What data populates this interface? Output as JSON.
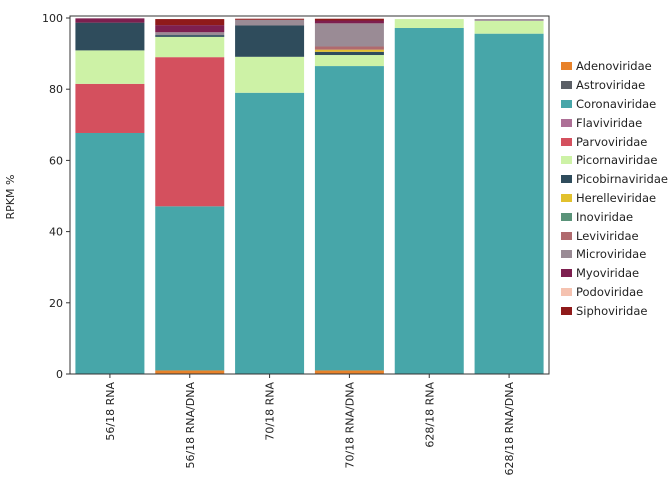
{
  "chart_data": {
    "type": "bar",
    "stacked": true,
    "title": "",
    "xlabel": "",
    "ylabel": "RPKM %",
    "ylim": [
      0,
      100
    ],
    "yticks": [
      0,
      20,
      40,
      60,
      80,
      100
    ],
    "legend_position": "right",
    "categories": [
      "56/18 RNA",
      "56/18 RNA/DNA",
      "70/18 RNA",
      "70/18 RNA/DNA",
      "628/18 RNA",
      "628/18 RNA/DNA"
    ],
    "series": [
      {
        "name": "Adenoviridae",
        "color": "#e8822a",
        "values": [
          0,
          1.0,
          0,
          1.0,
          0,
          0
        ]
      },
      {
        "name": "Astroviridae",
        "color": "#5b5f66",
        "values": [
          0,
          0,
          0,
          0,
          0,
          0
        ]
      },
      {
        "name": "Coronaviridae",
        "color": "#47a6a9",
        "values": [
          67.7,
          46.1,
          79.0,
          85.5,
          97.2,
          95.6
        ]
      },
      {
        "name": "Flaviviridae",
        "color": "#ad6f96",
        "values": [
          0,
          0,
          0,
          0,
          0,
          0
        ]
      },
      {
        "name": "Parvoviridae",
        "color": "#d4505e",
        "values": [
          13.8,
          41.9,
          0,
          0,
          0,
          0
        ]
      },
      {
        "name": "Picornaviridae",
        "color": "#cdf2a6",
        "values": [
          9.4,
          5.7,
          10.1,
          3.1,
          2.5,
          3.6
        ]
      },
      {
        "name": "Picobirnaviridae",
        "color": "#2f4c5c",
        "values": [
          7.8,
          0.5,
          8.8,
          0.9,
          0,
          0
        ]
      },
      {
        "name": "Herelleviridae",
        "color": "#e2c12d",
        "values": [
          0,
          0,
          0,
          0.6,
          0,
          0
        ]
      },
      {
        "name": "Inoviridae",
        "color": "#5a9379",
        "values": [
          0,
          0,
          0,
          0,
          0,
          0
        ]
      },
      {
        "name": "Leviviridae",
        "color": "#b06a6e",
        "values": [
          0,
          0,
          0,
          0.9,
          0,
          0
        ]
      },
      {
        "name": "Microviridae",
        "color": "#9a8b95",
        "values": [
          0,
          0.8,
          1.6,
          6.5,
          0,
          0.5
        ]
      },
      {
        "name": "Myoviridae",
        "color": "#7d1f4f",
        "values": [
          1.2,
          2.0,
          0,
          0.8,
          0,
          0
        ]
      },
      {
        "name": "Podoviridae",
        "color": "#f5c2b0",
        "values": [
          0,
          0,
          0,
          0,
          0,
          0
        ]
      },
      {
        "name": "Siphoviridae",
        "color": "#8f1a1a",
        "values": [
          0,
          1.7,
          0.3,
          0.5,
          0,
          0
        ]
      }
    ]
  }
}
